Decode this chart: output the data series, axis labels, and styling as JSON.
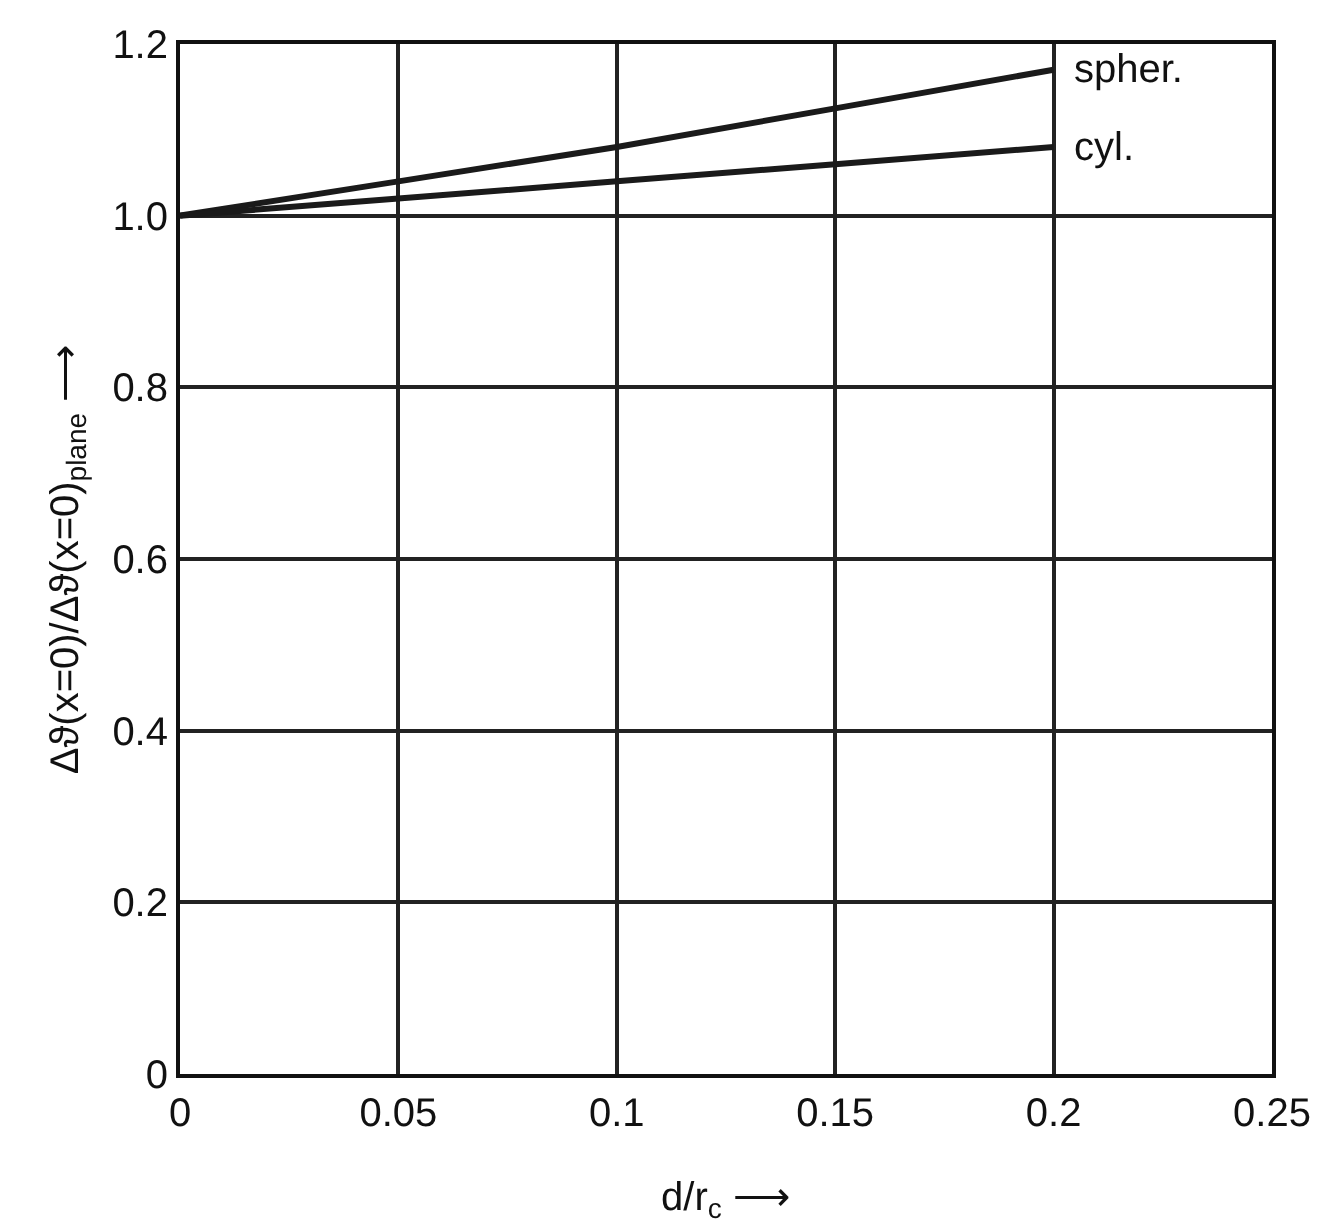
{
  "chart_data": {
    "type": "line",
    "xlabel": "d/r$_{c}$ ⟶",
    "ylabel": "Δϑ(x=0)/Δϑ(x=0)$_{plane}$ ⟶",
    "series": [
      {
        "name": "spher.",
        "color": "#1a1a1a",
        "x": [
          0,
          0.05,
          0.1,
          0.15,
          0.2
        ],
        "values": [
          1,
          1.04,
          1.08,
          1.125,
          1.17
        ]
      },
      {
        "name": "cyl.",
        "color": "#1a1a1a",
        "x": [
          0,
          0.05,
          0.1,
          0.15,
          0.2
        ],
        "values": [
          1,
          1.02,
          1.04,
          1.06,
          1.08
        ]
      }
    ],
    "xlim": [
      0,
      0.25
    ],
    "xticks": [
      0,
      0.05,
      0.1,
      0.15,
      0.2,
      0.25
    ],
    "ylim": [
      0,
      1.2
    ],
    "yticks": [
      0,
      0.2,
      0.4,
      0.6,
      0.8,
      {
        "value": 1,
        "label": "1.0"
      },
      1.2
    ],
    "grid": true,
    "legend": false,
    "marker": "none",
    "line_style": "solid"
  }
}
